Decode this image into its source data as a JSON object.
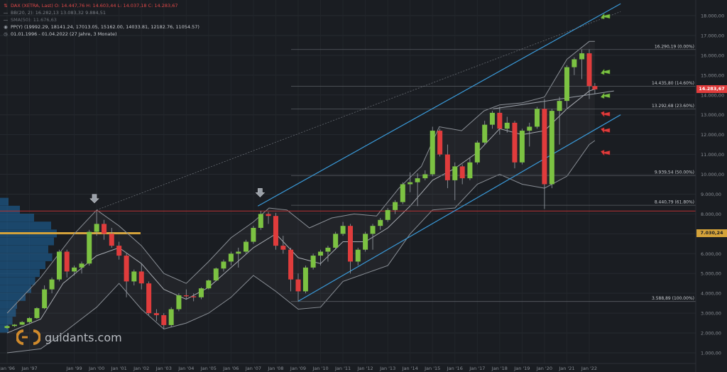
{
  "legend": {
    "title": "DAX (XETRA, Last)  O: 14.447,76  H: 14.603,44  L: 14.037,18  C: 14.283,67",
    "bb": "BB(20, 2): 16.282,13  13.083,32  9.884,51",
    "sma": "SMA(50): 11.676,63",
    "pp": "PP(Y)  (19992.29, 18141.24, 17013.05, 15162.00, 14033.81, 12182.76, 11054.57)",
    "period": "01.01.1996 - 01.04.2022  (27 Jahre, 3 Monate)"
  },
  "price_tags": {
    "current": "14.283,67",
    "poc": "7.030,24"
  },
  "watermark": "guidants.com",
  "colors": {
    "background": "#1a1d22",
    "up": "#7cc242",
    "down": "#e03c3c",
    "channel": "#3a9ad9",
    "fib_red": "#b83232",
    "volume_profile": "#1e6aa8",
    "poc": "#d4a23a",
    "bollinger": "#8a8f96"
  },
  "chart_data": {
    "type": "candlestick",
    "title": "DAX (XETRA, Last)",
    "xlabel": "",
    "ylabel": "",
    "y_axis_side": "right",
    "ylim": [
      500,
      18600
    ],
    "yticks": [
      1000,
      2000,
      3000,
      4000,
      5000,
      6000,
      7000,
      8000,
      9000,
      10000,
      11000,
      12000,
      13000,
      14000,
      15000,
      16000,
      17000,
      18000
    ],
    "ytick_labels": [
      "1.000,00",
      "2.000,00",
      "3.000,00",
      "4.000,00",
      "5.000,00",
      "6.000,00",
      "7.000,00",
      "8.000,00",
      "9.000,00",
      "10.000,00",
      "11.000,00",
      "12.000,00",
      "13.000,00",
      "14.000,00",
      "15.000,00",
      "16.000,00",
      "17.000,00",
      "18.000,00"
    ],
    "xlim": [
      1996.0,
      2023.4
    ],
    "xticks": [
      1996.0,
      1997.0,
      1999.0,
      2000.0,
      2001.0,
      2002.0,
      2003.0,
      2004.0,
      2005.0,
      2006.0,
      2007.0,
      2008.0,
      2009.0,
      2010.0,
      2011.0,
      2012.0,
      2013.0,
      2014.0,
      2015.0,
      2016.0,
      2017.0,
      2018.0,
      2019.0,
      2020.0,
      2021.0,
      2022.0
    ],
    "xtick_labels": [
      "Jan '96",
      "Jan '97",
      "Jan '99",
      "Jan '00",
      "Jan '01",
      "Jan '02",
      "Jan '03",
      "Jan '04",
      "Jan '05",
      "Jan '06",
      "Jan '07",
      "Jan '08",
      "Jan '09",
      "Jan '10",
      "Jan '11",
      "Jan '12",
      "Jan '13",
      "Jan '14",
      "Jan '15",
      "Jan '16",
      "Jan '17",
      "Jan '18",
      "Jan '19",
      "Jan '20",
      "Jan '21",
      "Jan '22"
    ],
    "grid": true,
    "candles": [
      {
        "t": 1996.0,
        "o": 2250,
        "h": 2400,
        "l": 2200,
        "c": 2350
      },
      {
        "t": 1996.33,
        "o": 2350,
        "h": 2450,
        "l": 2300,
        "c": 2420
      },
      {
        "t": 1996.67,
        "o": 2420,
        "h": 2600,
        "l": 2400,
        "c": 2550
      },
      {
        "t": 1997.0,
        "o": 2550,
        "h": 2800,
        "l": 2500,
        "c": 2750
      },
      {
        "t": 1997.33,
        "o": 2750,
        "h": 3300,
        "l": 2700,
        "c": 3250
      },
      {
        "t": 1997.67,
        "o": 3250,
        "h": 4400,
        "l": 3200,
        "c": 4200
      },
      {
        "t": 1998.0,
        "o": 4200,
        "h": 4800,
        "l": 4000,
        "c": 4700
      },
      {
        "t": 1998.33,
        "o": 4700,
        "h": 6200,
        "l": 4600,
        "c": 6100
      },
      {
        "t": 1998.67,
        "o": 6100,
        "h": 6200,
        "l": 4800,
        "c": 5100
      },
      {
        "t": 1999.0,
        "o": 5100,
        "h": 5400,
        "l": 4900,
        "c": 5300
      },
      {
        "t": 1999.33,
        "o": 5300,
        "h": 5600,
        "l": 5000,
        "c": 5500
      },
      {
        "t": 1999.67,
        "o": 5500,
        "h": 7200,
        "l": 5400,
        "c": 7100
      },
      {
        "t": 2000.0,
        "o": 7100,
        "h": 8150,
        "l": 6900,
        "c": 7500
      },
      {
        "t": 2000.33,
        "o": 7500,
        "h": 7700,
        "l": 6700,
        "c": 7000
      },
      {
        "t": 2000.67,
        "o": 7000,
        "h": 7300,
        "l": 6300,
        "c": 6400
      },
      {
        "t": 2001.0,
        "o": 6400,
        "h": 6600,
        "l": 5700,
        "c": 5900
      },
      {
        "t": 2001.33,
        "o": 5900,
        "h": 6000,
        "l": 3800,
        "c": 4600
      },
      {
        "t": 2001.67,
        "o": 4600,
        "h": 5200,
        "l": 4400,
        "c": 5100
      },
      {
        "t": 2002.0,
        "o": 5100,
        "h": 5500,
        "l": 4200,
        "c": 4500
      },
      {
        "t": 2002.33,
        "o": 4500,
        "h": 4600,
        "l": 2900,
        "c": 3000
      },
      {
        "t": 2002.67,
        "o": 3000,
        "h": 3200,
        "l": 2600,
        "c": 2900
      },
      {
        "t": 2003.0,
        "o": 2900,
        "h": 3000,
        "l": 2200,
        "c": 2400
      },
      {
        "t": 2003.33,
        "o": 2400,
        "h": 3300,
        "l": 2300,
        "c": 3200
      },
      {
        "t": 2003.67,
        "o": 3200,
        "h": 4000,
        "l": 3100,
        "c": 3900
      },
      {
        "t": 2004.0,
        "o": 3900,
        "h": 4200,
        "l": 3700,
        "c": 3850
      },
      {
        "t": 2004.33,
        "o": 3850,
        "h": 4000,
        "l": 3600,
        "c": 3800
      },
      {
        "t": 2004.67,
        "o": 3800,
        "h": 4300,
        "l": 3700,
        "c": 4250
      },
      {
        "t": 2005.0,
        "o": 4250,
        "h": 4700,
        "l": 4200,
        "c": 4650
      },
      {
        "t": 2005.33,
        "o": 4650,
        "h": 5300,
        "l": 4600,
        "c": 5250
      },
      {
        "t": 2005.67,
        "o": 5250,
        "h": 5700,
        "l": 5100,
        "c": 5600
      },
      {
        "t": 2006.0,
        "o": 5600,
        "h": 6100,
        "l": 5400,
        "c": 6000
      },
      {
        "t": 2006.33,
        "o": 6000,
        "h": 6300,
        "l": 5300,
        "c": 6100
      },
      {
        "t": 2006.67,
        "o": 6100,
        "h": 6700,
        "l": 6000,
        "c": 6600
      },
      {
        "t": 2007.0,
        "o": 6600,
        "h": 7400,
        "l": 6500,
        "c": 7300
      },
      {
        "t": 2007.33,
        "o": 7300,
        "h": 8150,
        "l": 7200,
        "c": 8000
      },
      {
        "t": 2007.67,
        "o": 8000,
        "h": 8100,
        "l": 7500,
        "c": 7900
      },
      {
        "t": 2008.0,
        "o": 7900,
        "h": 8050,
        "l": 6200,
        "c": 6400
      },
      {
        "t": 2008.33,
        "o": 6400,
        "h": 6900,
        "l": 6000,
        "c": 6200
      },
      {
        "t": 2008.67,
        "o": 6200,
        "h": 6300,
        "l": 4100,
        "c": 4700
      },
      {
        "t": 2009.0,
        "o": 4700,
        "h": 5000,
        "l": 3600,
        "c": 4100
      },
      {
        "t": 2009.33,
        "o": 4100,
        "h": 5400,
        "l": 4000,
        "c": 5300
      },
      {
        "t": 2009.67,
        "o": 5300,
        "h": 6000,
        "l": 5200,
        "c": 5900
      },
      {
        "t": 2010.0,
        "o": 5900,
        "h": 6200,
        "l": 5400,
        "c": 6100
      },
      {
        "t": 2010.33,
        "o": 6100,
        "h": 6400,
        "l": 5600,
        "c": 6300
      },
      {
        "t": 2010.67,
        "o": 6300,
        "h": 7100,
        "l": 6200,
        "c": 7000
      },
      {
        "t": 2011.0,
        "o": 7000,
        "h": 7600,
        "l": 6900,
        "c": 7400
      },
      {
        "t": 2011.33,
        "o": 7400,
        "h": 7500,
        "l": 5000,
        "c": 5600
      },
      {
        "t": 2011.67,
        "o": 5600,
        "h": 6300,
        "l": 5400,
        "c": 6200
      },
      {
        "t": 2012.0,
        "o": 6200,
        "h": 7100,
        "l": 6100,
        "c": 7000
      },
      {
        "t": 2012.33,
        "o": 7000,
        "h": 7500,
        "l": 6200,
        "c": 7400
      },
      {
        "t": 2012.67,
        "o": 7400,
        "h": 7800,
        "l": 7200,
        "c": 7700
      },
      {
        "t": 2013.0,
        "o": 7700,
        "h": 8300,
        "l": 7600,
        "c": 8200
      },
      {
        "t": 2013.33,
        "o": 8200,
        "h": 8700,
        "l": 8000,
        "c": 8600
      },
      {
        "t": 2013.67,
        "o": 8600,
        "h": 9600,
        "l": 8500,
        "c": 9500
      },
      {
        "t": 2014.0,
        "o": 9500,
        "h": 10100,
        "l": 9100,
        "c": 9600
      },
      {
        "t": 2014.33,
        "o": 9600,
        "h": 10050,
        "l": 8400,
        "c": 9800
      },
      {
        "t": 2014.67,
        "o": 9800,
        "h": 10200,
        "l": 9700,
        "c": 10000
      },
      {
        "t": 2015.0,
        "o": 10000,
        "h": 12400,
        "l": 9900,
        "c": 12200
      },
      {
        "t": 2015.33,
        "o": 12200,
        "h": 12300,
        "l": 10900,
        "c": 11000
      },
      {
        "t": 2015.67,
        "o": 11000,
        "h": 11500,
        "l": 9300,
        "c": 9700
      },
      {
        "t": 2016.0,
        "o": 9700,
        "h": 10600,
        "l": 8700,
        "c": 10400
      },
      {
        "t": 2016.33,
        "o": 10400,
        "h": 10500,
        "l": 9500,
        "c": 9800
      },
      {
        "t": 2016.67,
        "o": 9800,
        "h": 10800,
        "l": 9700,
        "c": 10600
      },
      {
        "t": 2017.0,
        "o": 10600,
        "h": 11700,
        "l": 10500,
        "c": 11600
      },
      {
        "t": 2017.33,
        "o": 11600,
        "h": 12700,
        "l": 11500,
        "c": 12500
      },
      {
        "t": 2017.67,
        "o": 12500,
        "h": 13200,
        "l": 12300,
        "c": 13100
      },
      {
        "t": 2018.0,
        "o": 13100,
        "h": 13400,
        "l": 12000,
        "c": 12300
      },
      {
        "t": 2018.33,
        "o": 12300,
        "h": 12900,
        "l": 12100,
        "c": 12600
      },
      {
        "t": 2018.67,
        "o": 12600,
        "h": 12700,
        "l": 10300,
        "c": 10600
      },
      {
        "t": 2019.0,
        "o": 10600,
        "h": 12300,
        "l": 10500,
        "c": 12200
      },
      {
        "t": 2019.33,
        "o": 12200,
        "h": 12600,
        "l": 11400,
        "c": 12400
      },
      {
        "t": 2019.67,
        "o": 12400,
        "h": 13400,
        "l": 12300,
        "c": 13300
      },
      {
        "t": 2020.0,
        "o": 13300,
        "h": 13800,
        "l": 8250,
        "c": 9500
      },
      {
        "t": 2020.33,
        "o": 9500,
        "h": 13300,
        "l": 9300,
        "c": 13200
      },
      {
        "t": 2020.67,
        "o": 13200,
        "h": 13900,
        "l": 11500,
        "c": 13700
      },
      {
        "t": 2021.0,
        "o": 13700,
        "h": 15500,
        "l": 13300,
        "c": 15400
      },
      {
        "t": 2021.33,
        "o": 15400,
        "h": 15900,
        "l": 15000,
        "c": 15800
      },
      {
        "t": 2021.67,
        "o": 15800,
        "h": 16300,
        "l": 14800,
        "c": 16100
      },
      {
        "t": 2022.0,
        "o": 16100,
        "h": 16300,
        "l": 13800,
        "c": 14450
      },
      {
        "t": 2022.25,
        "o": 14450,
        "h": 14600,
        "l": 14040,
        "c": 14283
      }
    ],
    "bollinger_upper": [
      [
        1996.0,
        3000
      ],
      [
        1997.5,
        4800
      ],
      [
        1999.0,
        7000
      ],
      [
        2000.0,
        8200
      ],
      [
        2001.0,
        7400
      ],
      [
        2002.0,
        6400
      ],
      [
        2003.0,
        5000
      ],
      [
        2004.0,
        4500
      ],
      [
        2005.0,
        5600
      ],
      [
        2006.0,
        6800
      ],
      [
        2007.0,
        7600
      ],
      [
        2007.7,
        8300
      ],
      [
        2008.5,
        8200
      ],
      [
        2009.5,
        7300
      ],
      [
        2010.5,
        7800
      ],
      [
        2011.5,
        8000
      ],
      [
        2012.5,
        7900
      ],
      [
        2013.5,
        9300
      ],
      [
        2014.5,
        10400
      ],
      [
        2015.3,
        12400
      ],
      [
        2016.3,
        12200
      ],
      [
        2017.3,
        13200
      ],
      [
        2018.0,
        13500
      ],
      [
        2019.0,
        13600
      ],
      [
        2020.0,
        13900
      ],
      [
        2021.0,
        15800
      ],
      [
        2022.0,
        16700
      ],
      [
        2022.25,
        16700
      ]
    ],
    "bollinger_middle": [
      [
        1996.0,
        2000
      ],
      [
        1997.5,
        2700
      ],
      [
        1998.5,
        4500
      ],
      [
        2000.0,
        5900
      ],
      [
        2001.0,
        6300
      ],
      [
        2002.0,
        5500
      ],
      [
        2003.0,
        4200
      ],
      [
        2004.0,
        3700
      ],
      [
        2005.0,
        4300
      ],
      [
        2006.0,
        5300
      ],
      [
        2007.0,
        6300
      ],
      [
        2008.0,
        7000
      ],
      [
        2009.0,
        5800
      ],
      [
        2010.0,
        5500
      ],
      [
        2011.0,
        6600
      ],
      [
        2012.0,
        6600
      ],
      [
        2013.0,
        7300
      ],
      [
        2014.0,
        8400
      ],
      [
        2015.0,
        9700
      ],
      [
        2016.0,
        10300
      ],
      [
        2017.0,
        11100
      ],
      [
        2018.0,
        12300
      ],
      [
        2019.0,
        12000
      ],
      [
        2020.0,
        12200
      ],
      [
        2021.0,
        13300
      ],
      [
        2022.0,
        14200
      ],
      [
        2022.25,
        14300
      ]
    ],
    "bollinger_lower": [
      [
        1996.0,
        1000
      ],
      [
        1997.5,
        1200
      ],
      [
        1998.5,
        2000
      ],
      [
        2000.0,
        3300
      ],
      [
        2001.0,
        4500
      ],
      [
        2002.0,
        3200
      ],
      [
        2003.0,
        2200
      ],
      [
        2004.0,
        2500
      ],
      [
        2005.0,
        3000
      ],
      [
        2006.0,
        3800
      ],
      [
        2007.0,
        4900
      ],
      [
        2008.0,
        4100
      ],
      [
        2009.0,
        3200
      ],
      [
        2010.0,
        3300
      ],
      [
        2011.0,
        4600
      ],
      [
        2012.0,
        5000
      ],
      [
        2013.0,
        5400
      ],
      [
        2014.0,
        7000
      ],
      [
        2015.0,
        8200
      ],
      [
        2016.0,
        8300
      ],
      [
        2017.0,
        9500
      ],
      [
        2018.0,
        10000
      ],
      [
        2019.0,
        9500
      ],
      [
        2020.0,
        9300
      ],
      [
        2021.0,
        9900
      ],
      [
        2022.0,
        11500
      ],
      [
        2022.25,
        11700
      ]
    ],
    "channel_upper": [
      [
        2007.2,
        8400
      ],
      [
        2023.4,
        18600
      ]
    ],
    "channel_lower": [
      [
        2009.0,
        3600
      ],
      [
        2023.4,
        13000
      ]
    ],
    "channel_mid_dotted": [
      [
        2000.0,
        8200
      ],
      [
        2023.4,
        18200
      ]
    ],
    "resistance_line": [
      [
        1999.5,
        5000
      ],
      [
        2000.3,
        7800
      ]
    ],
    "fib_levels": [
      {
        "value": 16290.19,
        "label": "16.290,19 (0.00%)"
      },
      {
        "value": 14435.8,
        "label": "14.435,80 (14.60%)"
      },
      {
        "value": 13292.68,
        "label": "13.292,68 (23.60%)"
      },
      {
        "value": 9939.54,
        "label": "9.939,54 (50.00%)"
      },
      {
        "value": 8440.79,
        "label": "8.440,79 (61.80%)"
      },
      {
        "value": 3588.89,
        "label": "3.588,89 (100.00%)"
      }
    ],
    "horizontal_line_red": 8150,
    "poc_level": 7030.24,
    "current_price": 14283.67,
    "volume_profile": [
      [
        2200,
        0.15
      ],
      [
        2600,
        0.22
      ],
      [
        3000,
        0.28
      ],
      [
        3400,
        0.3
      ],
      [
        3800,
        0.45
      ],
      [
        4200,
        0.55
      ],
      [
        4600,
        0.62
      ],
      [
        5000,
        0.7
      ],
      [
        5400,
        0.8
      ],
      [
        5800,
        0.92
      ],
      [
        6200,
        0.85
      ],
      [
        6600,
        0.95
      ],
      [
        7000,
        1.0
      ],
      [
        7400,
        0.9
      ],
      [
        7800,
        0.6
      ],
      [
        8200,
        0.35
      ],
      [
        8600,
        0.15
      ]
    ],
    "signals": [
      {
        "t": 1999.9,
        "type": "down_arrow",
        "price": 8700
      },
      {
        "t": 2007.3,
        "type": "down_arrow",
        "price": 9000
      },
      {
        "t": 2022.7,
        "type": "arrow_up_green",
        "price": 18000
      },
      {
        "t": 2022.7,
        "type": "arrow_up_green",
        "price": 15200
      },
      {
        "t": 2022.7,
        "type": "arrow_up_green",
        "price": 14000
      },
      {
        "t": 2022.7,
        "type": "arrow_down_red",
        "price": 13000
      },
      {
        "t": 2022.7,
        "type": "arrow_down_red",
        "price": 12180
      },
      {
        "t": 2022.7,
        "type": "arrow_down_red",
        "price": 11050
      }
    ]
  }
}
